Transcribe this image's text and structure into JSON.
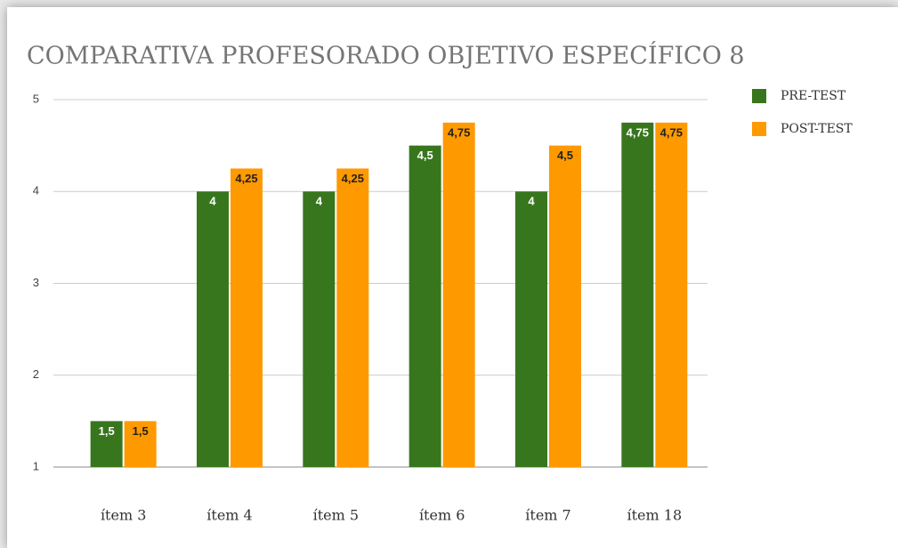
{
  "chart_data": {
    "type": "bar",
    "title": "COMPARATIVA PROFESORADO OBJETIVO ESPECÍFICO 8",
    "categories": [
      "ítem 3",
      "ítem 4",
      "ítem 5",
      "ítem 6",
      "ítem 7",
      "ítem 18"
    ],
    "series": [
      {
        "name": "PRE-TEST",
        "color": "#38761d",
        "values": [
          1.5,
          4,
          4,
          4.5,
          4,
          4.75
        ],
        "value_labels": [
          "1,5",
          "4",
          "4",
          "4,5",
          "4",
          "4,75"
        ]
      },
      {
        "name": "POST-TEST",
        "color": "#ff9900",
        "values": [
          1.5,
          4.25,
          4.25,
          4.75,
          4.5,
          4.75
        ],
        "value_labels": [
          "1,5",
          "4,25",
          "4,25",
          "4,75",
          "4,5",
          "4,75"
        ]
      }
    ],
    "ylim": [
      1,
      5
    ],
    "yticks": [
      1,
      2,
      3,
      4,
      5
    ],
    "grid": true,
    "legend": "right"
  }
}
